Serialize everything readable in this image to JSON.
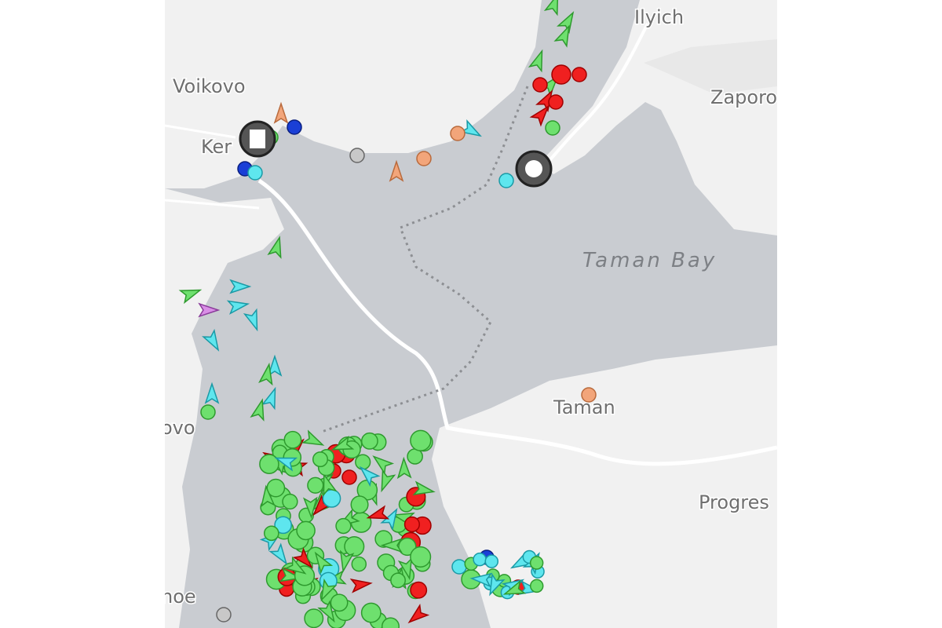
{
  "map": {
    "place_labels": [
      "Ilyich",
      "Voikovo",
      "Ker",
      "Zaporo",
      "Taman Bay",
      "Taman",
      "Progres",
      "ovo",
      "noe"
    ]
  }
}
